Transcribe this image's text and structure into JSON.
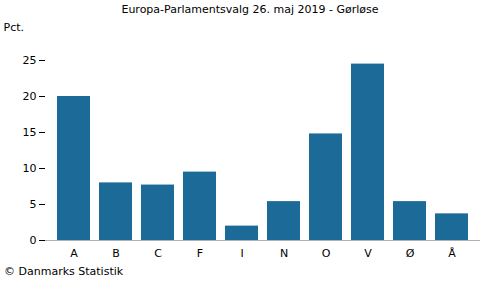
{
  "chart_data": {
    "type": "bar",
    "title": "Europa-Parlamentsvalg 26. maj 2019 - Gørløse",
    "y_label": "Pct.",
    "caption": "© Danmarks Statistik",
    "categories": [
      "A",
      "B",
      "C",
      "F",
      "I",
      "N",
      "O",
      "V",
      "Ø",
      "Å"
    ],
    "values": [
      20.0,
      8.0,
      7.7,
      9.5,
      2.0,
      5.4,
      14.8,
      24.5,
      5.4,
      3.7
    ],
    "color": "#1c6a98",
    "ylim": [
      0,
      25
    ],
    "yticks": [
      0,
      5,
      10,
      15,
      20,
      25
    ],
    "grid": false
  }
}
